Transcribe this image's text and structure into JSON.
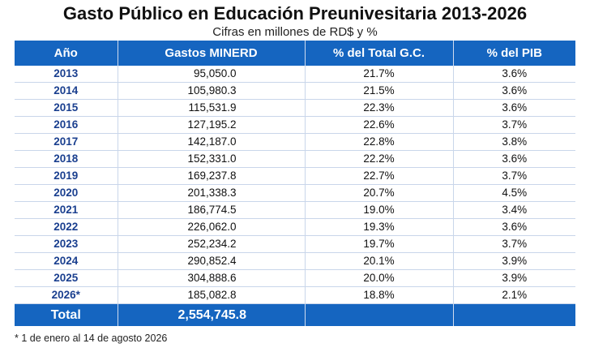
{
  "title": "Gasto Público en Educación Preunivesitaria 2013-2026",
  "subtitle": "Cifras en millones de RD$ y %",
  "headers": {
    "year": "Año",
    "gasto": "Gastos MINERD",
    "pct_gc": "% del Total G.C.",
    "pct_pib": "% del PIB"
  },
  "rows": [
    {
      "year": "2013",
      "gasto": "95,050.0",
      "pct_gc": "21.7%",
      "pct_pib": "3.6%"
    },
    {
      "year": "2014",
      "gasto": "105,980.3",
      "pct_gc": "21.5%",
      "pct_pib": "3.6%"
    },
    {
      "year": "2015",
      "gasto": "115,531.9",
      "pct_gc": "22.3%",
      "pct_pib": "3.6%"
    },
    {
      "year": "2016",
      "gasto": "127,195.2",
      "pct_gc": "22.6%",
      "pct_pib": "3.7%"
    },
    {
      "year": "2017",
      "gasto": "142,187.0",
      "pct_gc": "22.8%",
      "pct_pib": "3.8%"
    },
    {
      "year": "2018",
      "gasto": "152,331.0",
      "pct_gc": "22.2%",
      "pct_pib": "3.6%"
    },
    {
      "year": "2019",
      "gasto": "169,237.8",
      "pct_gc": "22.7%",
      "pct_pib": "3.7%"
    },
    {
      "year": "2020",
      "gasto": "201,338.3",
      "pct_gc": "20.7%",
      "pct_pib": "4.5%"
    },
    {
      "year": "2021",
      "gasto": "186,774.5",
      "pct_gc": "19.0%",
      "pct_pib": "3.4%"
    },
    {
      "year": "2022",
      "gasto": "226,062.0",
      "pct_gc": "19.3%",
      "pct_pib": "3.6%"
    },
    {
      "year": "2023",
      "gasto": "252,234.2",
      "pct_gc": "19.7%",
      "pct_pib": "3.7%"
    },
    {
      "year": "2024",
      "gasto": "290,852.4",
      "pct_gc": "20.1%",
      "pct_pib": "3.9%"
    },
    {
      "year": "2025",
      "gasto": "304,888.6",
      "pct_gc": "20.0%",
      "pct_pib": "3.9%"
    },
    {
      "year": "2026*",
      "gasto": "185,082.8",
      "pct_gc": "18.8%",
      "pct_pib": "2.1%"
    }
  ],
  "total": {
    "label": "Total",
    "gasto": "2,554,745.8"
  },
  "footnote": "* 1 de enero al 14 de agosto 2026",
  "colors": {
    "header_bg": "#1565c0",
    "year_text": "#1a3f8f"
  }
}
